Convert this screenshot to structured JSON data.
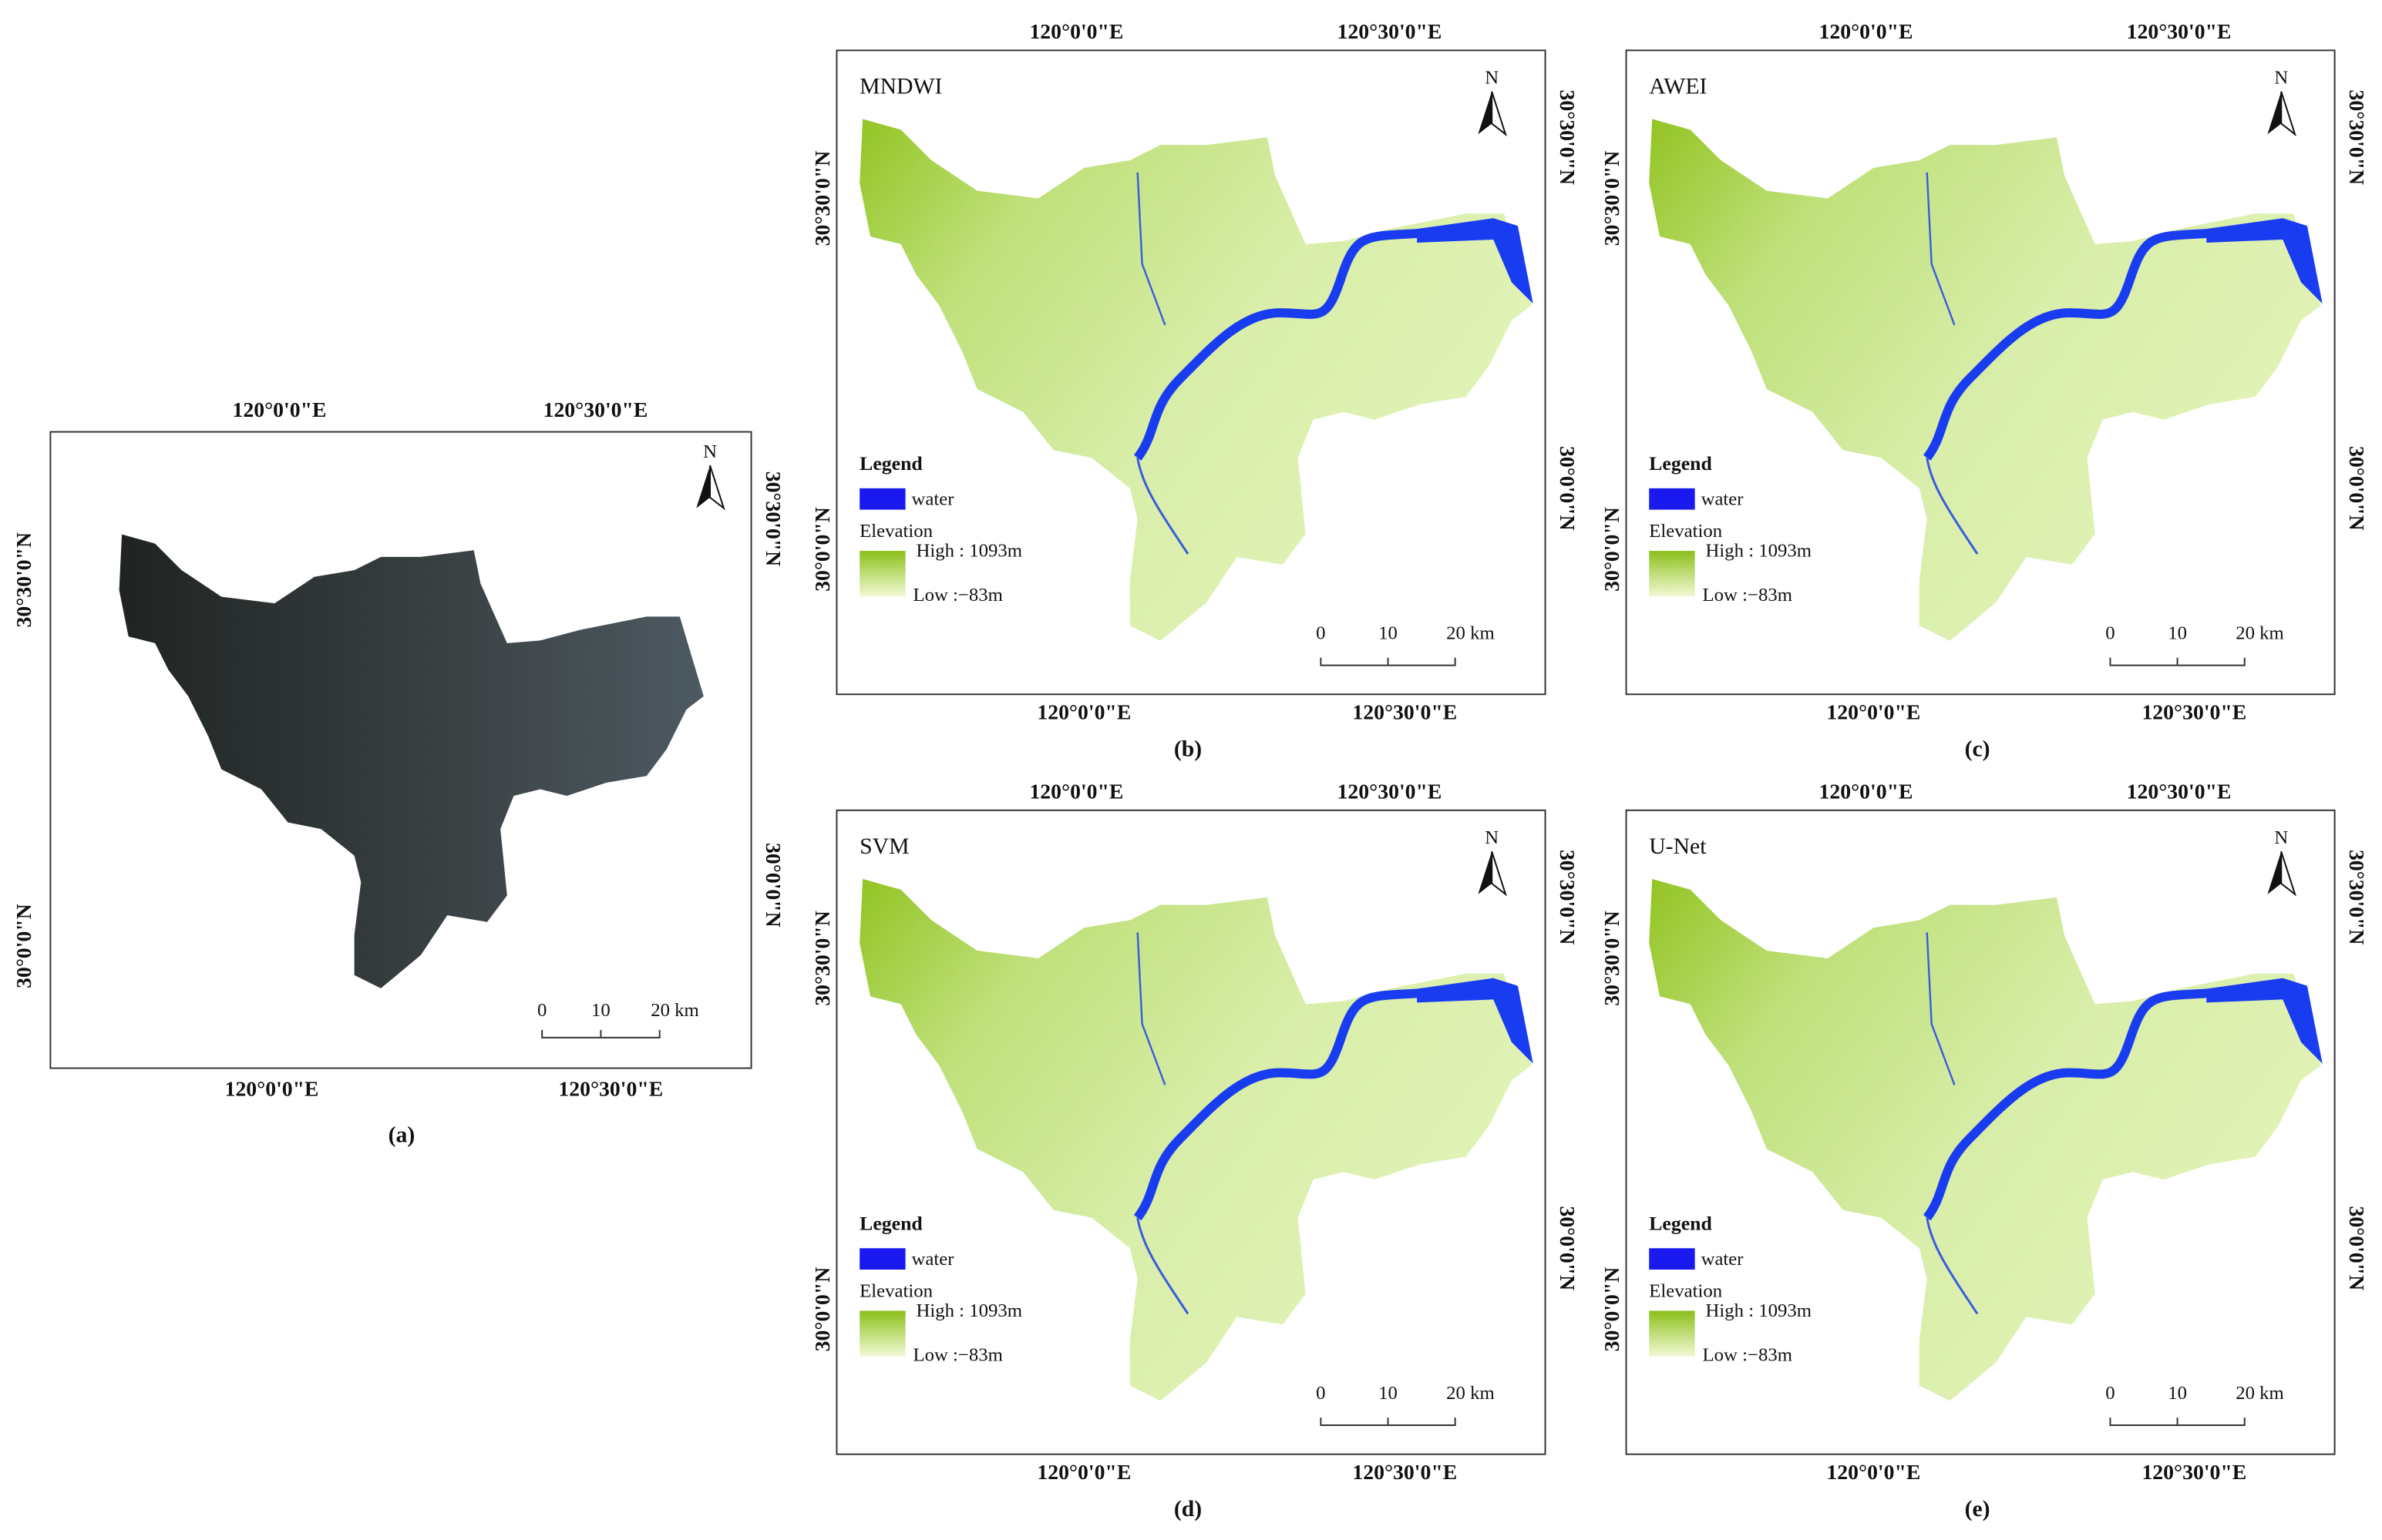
{
  "panels": [
    {
      "caption": "(a)",
      "north": "N",
      "top_labels": [
        "120°0'0\"E",
        "120°30'0\"E"
      ],
      "bottom_labels": [
        "120°0'0\"E",
        "120°30'0\"E"
      ],
      "left_labels": [
        "30°30'0\"N",
        "30°0'0\"N"
      ],
      "right_labels": [
        "30°30'0\"N",
        "30°0'0\"N"
      ],
      "scale": [
        "0",
        "10",
        "20 km"
      ]
    },
    {
      "caption": "(b)",
      "title": "MNDWI",
      "north": "N",
      "top_labels": [
        "120°0'0\"E",
        "120°30'0\"E"
      ],
      "bottom_labels": [
        "120°0'0\"E",
        "120°30'0\"E"
      ],
      "left_labels": [
        "30°30'0\"N",
        "30°0'0\"N"
      ],
      "right_labels": [
        "30°30'0\"N",
        "30°0'0\"N"
      ],
      "scale": [
        "0",
        "10",
        "20 km"
      ],
      "legend": {
        "title": "Legend",
        "water": "water",
        "elevation": "Elevation",
        "high": "High : 1093m",
        "low": "Low :−83m"
      }
    },
    {
      "caption": "(c)",
      "title": "AWEI",
      "north": "N",
      "top_labels": [
        "120°0'0\"E",
        "120°30'0\"E"
      ],
      "bottom_labels": [
        "120°0'0\"E",
        "120°30'0\"E"
      ],
      "left_labels": [
        "30°30'0\"N",
        "30°0'0\"N"
      ],
      "right_labels": [
        "30°30'0\"N",
        "30°0'0\"N"
      ],
      "scale": [
        "0",
        "10",
        "20 km"
      ],
      "legend": {
        "title": "Legend",
        "water": "water",
        "elevation": "Elevation",
        "high": "High : 1093m",
        "low": "Low :−83m"
      }
    },
    {
      "caption": "(d)",
      "title": "SVM",
      "north": "N",
      "top_labels": [
        "120°0'0\"E",
        "120°30'0\"E"
      ],
      "bottom_labels": [
        "120°0'0\"E",
        "120°30'0\"E"
      ],
      "left_labels": [
        "30°30'0\"N",
        "30°0'0\"N"
      ],
      "right_labels": [
        "30°30'0\"N",
        "30°0'0\"N"
      ],
      "scale": [
        "0",
        "10",
        "20 km"
      ],
      "legend": {
        "title": "Legend",
        "water": "water",
        "elevation": "Elevation",
        "high": "High : 1093m",
        "low": "Low :−83m"
      }
    },
    {
      "caption": "(e)",
      "title": "U-Net",
      "north": "N",
      "top_labels": [
        "120°0'0\"E",
        "120°30'0\"E"
      ],
      "bottom_labels": [
        "120°0'0\"E",
        "120°30'0\"E"
      ],
      "left_labels": [
        "30°30'0\"N",
        "30°0'0\"N"
      ],
      "right_labels": [
        "30°30'0\"N",
        "30°0'0\"N"
      ],
      "scale": [
        "0",
        "10",
        "20 km"
      ],
      "legend": {
        "title": "Legend",
        "water": "water",
        "elevation": "Elevation",
        "high": "High : 1093m",
        "low": "Low :−83m"
      }
    }
  ]
}
